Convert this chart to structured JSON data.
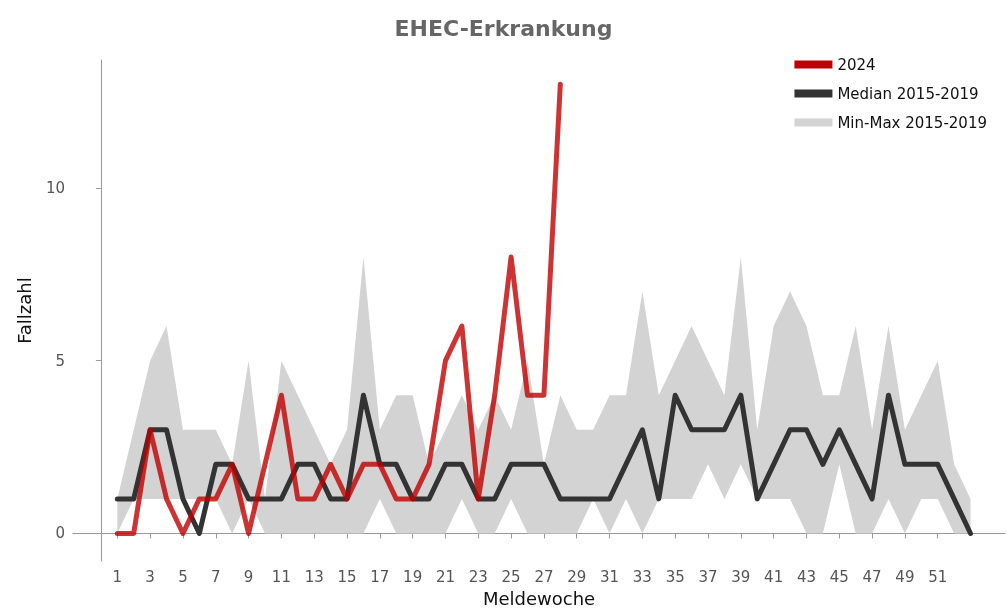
{
  "chart_data": {
    "type": "line",
    "title": "EHEC-Erkrankung",
    "xlabel": "Meldewoche",
    "ylabel": "Fallzahl",
    "x": [
      1,
      2,
      3,
      4,
      5,
      6,
      7,
      8,
      9,
      10,
      11,
      12,
      13,
      14,
      15,
      16,
      17,
      18,
      19,
      20,
      21,
      22,
      23,
      24,
      25,
      26,
      27,
      28,
      29,
      30,
      31,
      32,
      33,
      34,
      35,
      36,
      37,
      38,
      39,
      40,
      41,
      42,
      43,
      44,
      45,
      46,
      47,
      48,
      49,
      50,
      51,
      52,
      53
    ],
    "series": [
      {
        "name": "Min-Max 2015-2019",
        "color": "#d3d3d3",
        "values": [
          null,
          null,
          null,
          null,
          null,
          null,
          null,
          null,
          null,
          null,
          null,
          null,
          null,
          null,
          null,
          null,
          null,
          null,
          null,
          null,
          null,
          null,
          null,
          null,
          null,
          null,
          null,
          null,
          null,
          null,
          null,
          null,
          null,
          null,
          null,
          null,
          null,
          null,
          null,
          null,
          null,
          null,
          null,
          null,
          null,
          null,
          null,
          null,
          null,
          null,
          null,
          null,
          null
        ],
        "lower": [
          0,
          1,
          1,
          1,
          1,
          1,
          1,
          0,
          1,
          0,
          0,
          0,
          0,
          0,
          0,
          0,
          1,
          0,
          0,
          0,
          0,
          1,
          0,
          0,
          1,
          0,
          0,
          0,
          0,
          1,
          0,
          1,
          0,
          1,
          1,
          1,
          2,
          1,
          2,
          1,
          1,
          1,
          0,
          0,
          2,
          0,
          0,
          1,
          0,
          1,
          1,
          0,
          0
        ],
        "upper": [
          1,
          3,
          5,
          6,
          3,
          3,
          3,
          2,
          5,
          1,
          5,
          4,
          3,
          2,
          3,
          8,
          3,
          4,
          4,
          2,
          3,
          4,
          3,
          4,
          3,
          5,
          2,
          4,
          3,
          3,
          4,
          4,
          7,
          4,
          5,
          6,
          5,
          4,
          8,
          3,
          6,
          7,
          6,
          4,
          4,
          6,
          3,
          6,
          3,
          4,
          5,
          2,
          1
        ]
      },
      {
        "name": "Median 2015-2019",
        "color": "#333333",
        "values": [
          1,
          1,
          3,
          3,
          1,
          0,
          2,
          2,
          1,
          1,
          1,
          2,
          2,
          1,
          1,
          4,
          2,
          2,
          1,
          1,
          2,
          2,
          1,
          1,
          2,
          2,
          2,
          1,
          1,
          1,
          1,
          2,
          3,
          1,
          4,
          3,
          3,
          3,
          4,
          1,
          2,
          3,
          3,
          2,
          3,
          2,
          1,
          4,
          2,
          2,
          2,
          1,
          0
        ]
      },
      {
        "name": "2024",
        "color": "#c00000",
        "values": [
          0,
          0,
          3,
          1,
          0,
          1,
          1,
          2,
          0,
          2,
          4,
          1,
          1,
          2,
          1,
          2,
          2,
          1,
          1,
          2,
          5,
          6,
          1,
          4,
          8,
          4,
          4,
          13,
          null,
          null,
          null,
          null,
          null,
          null,
          null,
          null,
          null,
          null,
          null,
          null,
          null,
          null,
          null,
          null,
          null,
          null,
          null,
          null,
          null,
          null,
          null,
          null,
          null
        ]
      }
    ],
    "xlim": [
      -1.7,
      55.1
    ],
    "xticks": [
      1,
      3,
      5,
      7,
      9,
      11,
      13,
      15,
      17,
      19,
      21,
      23,
      25,
      27,
      29,
      31,
      33,
      35,
      37,
      39,
      41,
      43,
      45,
      47,
      49,
      51
    ],
    "ylim": [
      -0.8,
      13.7
    ],
    "yticks": [
      0,
      5,
      10
    ],
    "grid": false,
    "legend": "top right",
    "marker": "none",
    "line_style": "solid"
  }
}
